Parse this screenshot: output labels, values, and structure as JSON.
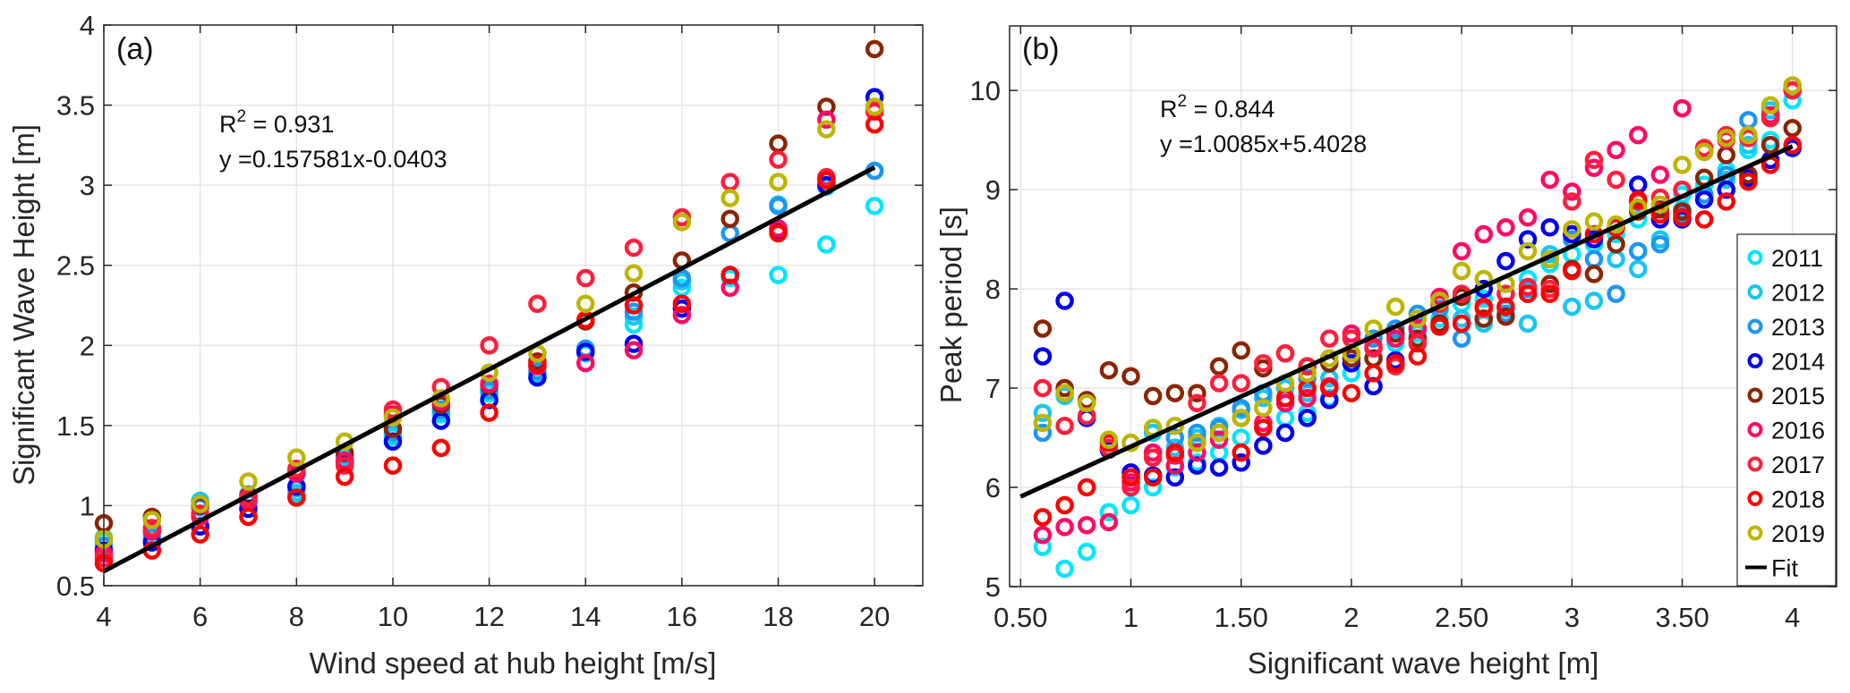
{
  "chart_data": [
    {
      "type": "scatter",
      "panel_label": "(a)",
      "xlabel": "Wind speed at hub height [m/s]",
      "ylabel": "Significant Wave Height [m]",
      "xlim": [
        4,
        21
      ],
      "ylim": [
        0.5,
        4
      ],
      "xticks": [
        4,
        6,
        8,
        10,
        12,
        14,
        16,
        18,
        20
      ],
      "xtick_labels": [
        "4",
        "6",
        "8",
        "10",
        "12",
        "14",
        "16",
        "18",
        "20"
      ],
      "yticks": [
        0.5,
        1,
        1.5,
        2,
        2.5,
        3,
        3.5,
        4
      ],
      "ytick_labels": [
        "0.5",
        "1",
        "1.5",
        "2",
        "2.5",
        "3",
        "3.5",
        "4"
      ],
      "grid": true,
      "annotation": {
        "r2_label": "R",
        "r2_sup": "2",
        "r2_value": " = 0.931",
        "equation": "y =0.157581x-0.0403"
      },
      "fit": {
        "slope": 0.157581,
        "intercept": -0.0403,
        "x_range": [
          4,
          20
        ]
      },
      "x": [
        4,
        5,
        6,
        7,
        8,
        9,
        10,
        11,
        12,
        13,
        14,
        15,
        16,
        17,
        18,
        19,
        20
      ],
      "series": [
        {
          "name": "2011",
          "values": [
            0.78,
            0.83,
            1.01,
            1.02,
            1.06,
            1.3,
            1.43,
            1.57,
            1.7,
            1.82,
            1.95,
            2.13,
            2.36,
            2.42,
            2.44,
            2.63,
            2.87
          ]
        },
        {
          "name": "2012",
          "values": [
            0.8,
            0.86,
            1.03,
            1.05,
            1.08,
            1.3,
            1.44,
            1.58,
            1.72,
            1.83,
            1.97,
            2.18,
            2.4,
            2.44,
            2.88,
            2.99,
            3.09
          ]
        },
        {
          "name": "2013",
          "values": [
            0.75,
            0.8,
            0.99,
            1.07,
            1.11,
            1.32,
            1.46,
            1.6,
            1.72,
            1.84,
            1.98,
            2.21,
            2.42,
            2.7,
            2.87,
            3.0,
            3.09
          ]
        },
        {
          "name": "2014",
          "values": [
            0.72,
            0.77,
            0.87,
            0.98,
            1.12,
            1.27,
            1.4,
            1.53,
            1.66,
            1.8,
            1.96,
            2.01,
            2.23,
            2.44,
            2.72,
            3.0,
            3.55
          ]
        },
        {
          "name": "2015",
          "values": [
            0.89,
            0.93,
            1.0,
            1.06,
            1.21,
            1.33,
            1.48,
            1.63,
            1.75,
            1.9,
            2.15,
            2.33,
            2.53,
            2.79,
            3.26,
            3.49,
            3.85
          ]
        },
        {
          "name": "2016",
          "values": [
            0.7,
            0.84,
            0.93,
            1.03,
            1.2,
            1.28,
            1.57,
            1.65,
            1.76,
            1.87,
            1.89,
            1.97,
            2.19,
            2.36,
            2.73,
            3.41,
            3.46
          ]
        },
        {
          "name": "2017",
          "values": [
            0.67,
            0.86,
            0.95,
            1.05,
            1.23,
            1.25,
            1.6,
            1.74,
            2.0,
            2.26,
            2.42,
            2.61,
            2.8,
            3.02,
            3.16,
            3.05,
            3.47
          ]
        },
        {
          "name": "2018",
          "values": [
            0.64,
            0.72,
            0.82,
            0.93,
            1.05,
            1.18,
            1.25,
            1.36,
            1.58,
            1.88,
            2.16,
            2.25,
            2.26,
            2.44,
            2.7,
            3.03,
            3.38
          ]
        },
        {
          "name": "2019",
          "values": [
            0.79,
            0.91,
            1.01,
            1.15,
            1.3,
            1.4,
            1.55,
            1.67,
            1.83,
            1.95,
            2.26,
            2.45,
            2.77,
            2.92,
            3.02,
            3.35,
            3.49
          ]
        }
      ]
    },
    {
      "type": "scatter",
      "panel_label": "(b)",
      "xlabel": "Significant wave height [m]",
      "ylabel": "Peak period [s]",
      "xlim": [
        0.45,
        4.2
      ],
      "ylim": [
        5,
        10.65
      ],
      "xticks": [
        0.5,
        1,
        1.5,
        2,
        2.5,
        3,
        3.5,
        4
      ],
      "xtick_labels": [
        "0.50",
        "1",
        "1.50",
        "2",
        "2.50",
        "3",
        "3.50",
        "4"
      ],
      "yticks": [
        5,
        6,
        7,
        8,
        9,
        10
      ],
      "ytick_labels": [
        "5",
        "6",
        "7",
        "8",
        "9",
        "10"
      ],
      "grid": true,
      "legend_position": "right",
      "legend": [
        "2011",
        "2012",
        "2013",
        "2014",
        "2015",
        "2016",
        "2017",
        "2018",
        "2019",
        "Fit"
      ],
      "annotation": {
        "r2_label": "R",
        "r2_sup": "2",
        "r2_value": " = 0.844",
        "equation": "y =1.0085x+5.4028"
      },
      "fit": {
        "slope": 1.0085,
        "intercept": 5.4028,
        "x_range": [
          0.5,
          4
        ]
      },
      "x": [
        0.6,
        0.7,
        0.8,
        0.9,
        1.0,
        1.1,
        1.2,
        1.3,
        1.4,
        1.5,
        1.6,
        1.7,
        1.8,
        1.9,
        2.0,
        2.1,
        2.2,
        2.3,
        2.4,
        2.5,
        2.6,
        2.7,
        2.8,
        2.9,
        3.0,
        3.1,
        3.2,
        3.3,
        3.4,
        3.5,
        3.6,
        3.7,
        3.8,
        3.9,
        4.0
      ],
      "series": [
        {
          "name": "2011",
          "values": [
            5.4,
            5.18,
            5.35,
            5.75,
            5.82,
            6.0,
            6.2,
            6.25,
            6.35,
            6.5,
            6.6,
            6.7,
            6.75,
            6.9,
            7.15,
            7.3,
            7.45,
            7.55,
            7.7,
            7.85,
            7.9,
            7.95,
            8.1,
            8.25,
            8.35,
            8.45,
            8.55,
            8.7,
            8.8,
            8.95,
            9.05,
            9.2,
            9.4,
            9.5,
            9.9
          ]
        },
        {
          "name": "2012",
          "values": [
            6.75,
            6.92,
            6.7,
            6.4,
            6.45,
            6.55,
            6.4,
            6.5,
            6.62,
            6.78,
            6.9,
            7.0,
            6.95,
            7.1,
            7.25,
            7.4,
            7.6,
            7.7,
            7.8,
            7.7,
            7.65,
            7.8,
            7.65,
            8.35,
            7.82,
            7.88,
            8.3,
            8.2,
            8.5,
            8.8,
            8.95,
            9.1,
            9.45,
            9.8,
            10.0
          ]
        },
        {
          "name": "2013",
          "values": [
            6.55,
            6.95,
            6.72,
            6.4,
            6.1,
            6.35,
            6.5,
            6.55,
            6.6,
            6.8,
            6.95,
            7.05,
            7.1,
            7.3,
            7.3,
            7.5,
            7.6,
            7.75,
            7.8,
            7.5,
            7.7,
            7.75,
            8.0,
            8.3,
            8.5,
            8.3,
            7.95,
            8.38,
            8.45,
            8.75,
            8.95,
            9.15,
            9.7,
            9.75,
            10.0
          ]
        },
        {
          "name": "2014",
          "values": [
            7.32,
            7.88,
            6.7,
            6.38,
            6.15,
            6.12,
            6.1,
            6.22,
            6.2,
            6.25,
            6.42,
            6.55,
            6.7,
            6.88,
            7.25,
            7.02,
            7.28,
            7.6,
            7.62,
            7.95,
            8.0,
            8.28,
            8.5,
            8.62,
            8.55,
            8.5,
            8.62,
            9.05,
            8.7,
            8.7,
            8.9,
            9.0,
            9.12,
            9.3,
            9.42
          ]
        },
        {
          "name": "2015",
          "values": [
            7.6,
            7.0,
            6.88,
            7.18,
            7.12,
            6.92,
            6.95,
            6.95,
            7.22,
            7.38,
            7.2,
            7.35,
            7.22,
            7.25,
            7.3,
            7.3,
            7.55,
            7.5,
            7.65,
            7.92,
            7.7,
            7.72,
            7.95,
            8.05,
            8.2,
            8.15,
            8.45,
            8.78,
            8.8,
            8.78,
            9.12,
            9.35,
            9.15,
            9.45,
            9.62
          ]
        },
        {
          "name": "2016",
          "values": [
            5.52,
            5.6,
            5.62,
            5.65,
            6.05,
            6.35,
            6.22,
            6.35,
            6.48,
            6.7,
            6.65,
            6.85,
            6.9,
            7.02,
            7.55,
            7.42,
            7.5,
            7.6,
            7.92,
            8.38,
            8.55,
            8.62,
            8.72,
            9.1,
            8.98,
            9.22,
            9.4,
            9.55,
            9.15,
            9.82,
            9.38,
            9.5,
            9.55,
            9.75,
            10.05
          ]
        },
        {
          "name": "2017",
          "values": [
            7.0,
            6.62,
            6.72,
            6.4,
            6.0,
            6.3,
            6.32,
            6.85,
            7.05,
            7.05,
            7.25,
            7.35,
            7.22,
            7.5,
            7.5,
            7.4,
            7.22,
            7.45,
            7.85,
            7.95,
            7.8,
            7.95,
            8.02,
            8.0,
            8.88,
            9.3,
            9.1,
            8.88,
            8.92,
            9.0,
            9.42,
            9.55,
            9.52,
            9.72,
            10.0
          ]
        },
        {
          "name": "2018",
          "values": [
            5.7,
            5.82,
            6.0,
            6.45,
            6.1,
            6.1,
            6.35,
            6.45,
            6.55,
            6.35,
            6.6,
            6.9,
            7.0,
            7.0,
            6.95,
            7.15,
            7.25,
            7.32,
            7.62,
            7.65,
            7.82,
            7.82,
            7.95,
            7.95,
            8.18,
            8.55,
            8.62,
            8.9,
            8.75,
            8.72,
            8.7,
            8.88,
            9.08,
            9.25,
            9.45
          ]
        },
        {
          "name": "2019",
          "values": [
            6.65,
            6.95,
            6.85,
            6.48,
            6.45,
            6.6,
            6.62,
            6.45,
            6.55,
            6.7,
            6.8,
            7.05,
            7.15,
            7.3,
            7.35,
            7.6,
            7.82,
            7.7,
            7.88,
            8.18,
            8.1,
            8.05,
            8.38,
            8.3,
            8.6,
            8.68,
            8.65,
            8.82,
            8.85,
            9.25,
            9.38,
            9.52,
            9.55,
            9.85,
            10.05
          ]
        }
      ],
      "colors": {
        "2011": "#00e5ff",
        "2012": "#19c6f2",
        "2013": "#1e96f0",
        "2014": "#0000ee",
        "2015": "#8b2500",
        "2016": "#ff0a64",
        "2017": "#ff1e3c",
        "2018": "#ff0000",
        "2019": "#bdb600",
        "Fit": "#000000"
      }
    }
  ]
}
